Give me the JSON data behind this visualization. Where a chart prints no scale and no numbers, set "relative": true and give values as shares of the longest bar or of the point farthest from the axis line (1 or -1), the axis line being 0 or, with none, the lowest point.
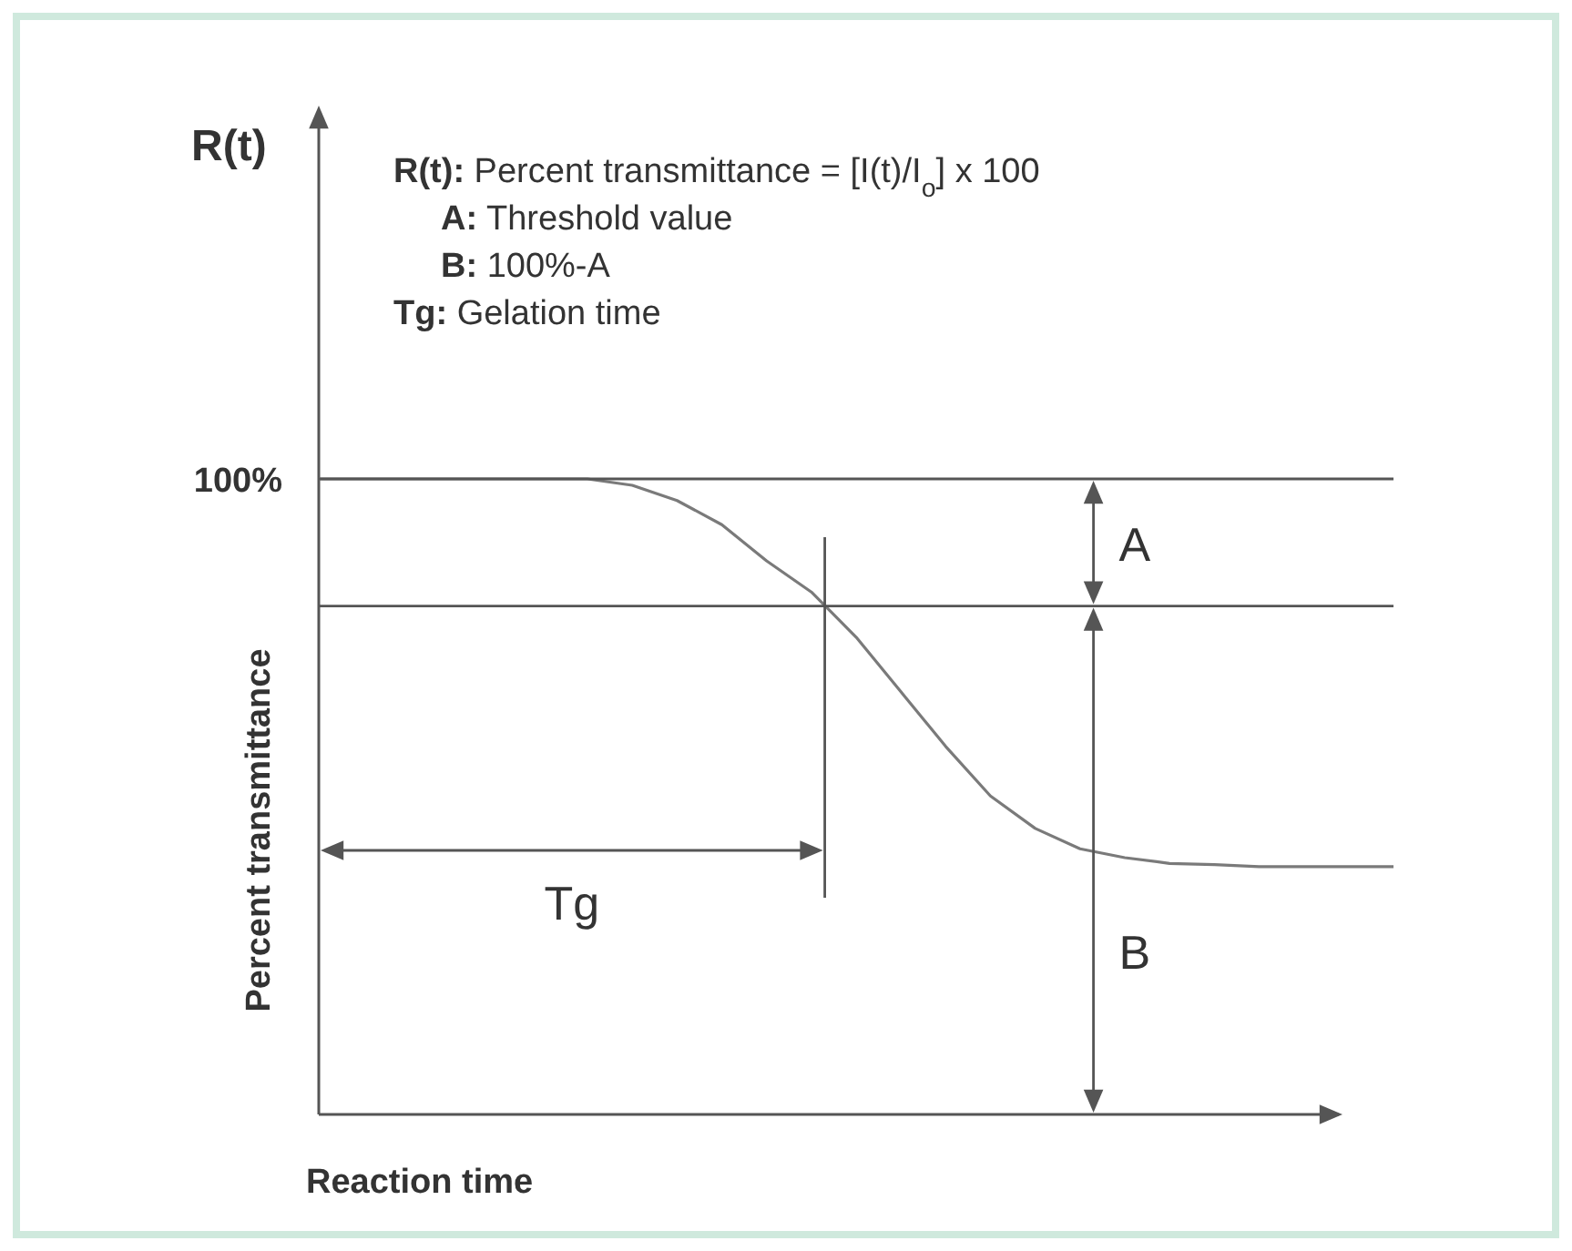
{
  "chart_data": {
    "type": "line",
    "relative": true,
    "xlabel": "Reaction time",
    "ylabel": "Percent transmittance",
    "categories": [
      null,
      null,
      null,
      null,
      null,
      null,
      null,
      null,
      null,
      null,
      null,
      null,
      null,
      null,
      null,
      null,
      null,
      null,
      null,
      null,
      null,
      null,
      null,
      null,
      null
    ],
    "series": [
      {
        "color": "#7a7a7a",
        "values": [
          1,
          1,
          1,
          1,
          1,
          1,
          1,
          0.99,
          0.966,
          0.928,
          0.871,
          0.822,
          0.751,
          0.665,
          0.579,
          0.501,
          0.45,
          0.418,
          0.404,
          0.395,
          0.393,
          0.39,
          0.39,
          0.39,
          0.39
        ]
      }
    ],
    "ref_lines": [
      {
        "axis": "y",
        "value": 1,
        "label": "100%",
        "color": "#555555"
      },
      {
        "axis": "y",
        "value": 0.8,
        "label": null,
        "color": "#555555"
      }
    ],
    "annotations": [
      "R(t): Percent transmittance = [I(t)/I$_{o}$] x 100",
      "A: Threshold value",
      "B: 100%-A",
      "Tg: Gelation time",
      "R(t)",
      "A",
      "B",
      "Tg"
    ],
    "line_style": "solid"
  }
}
